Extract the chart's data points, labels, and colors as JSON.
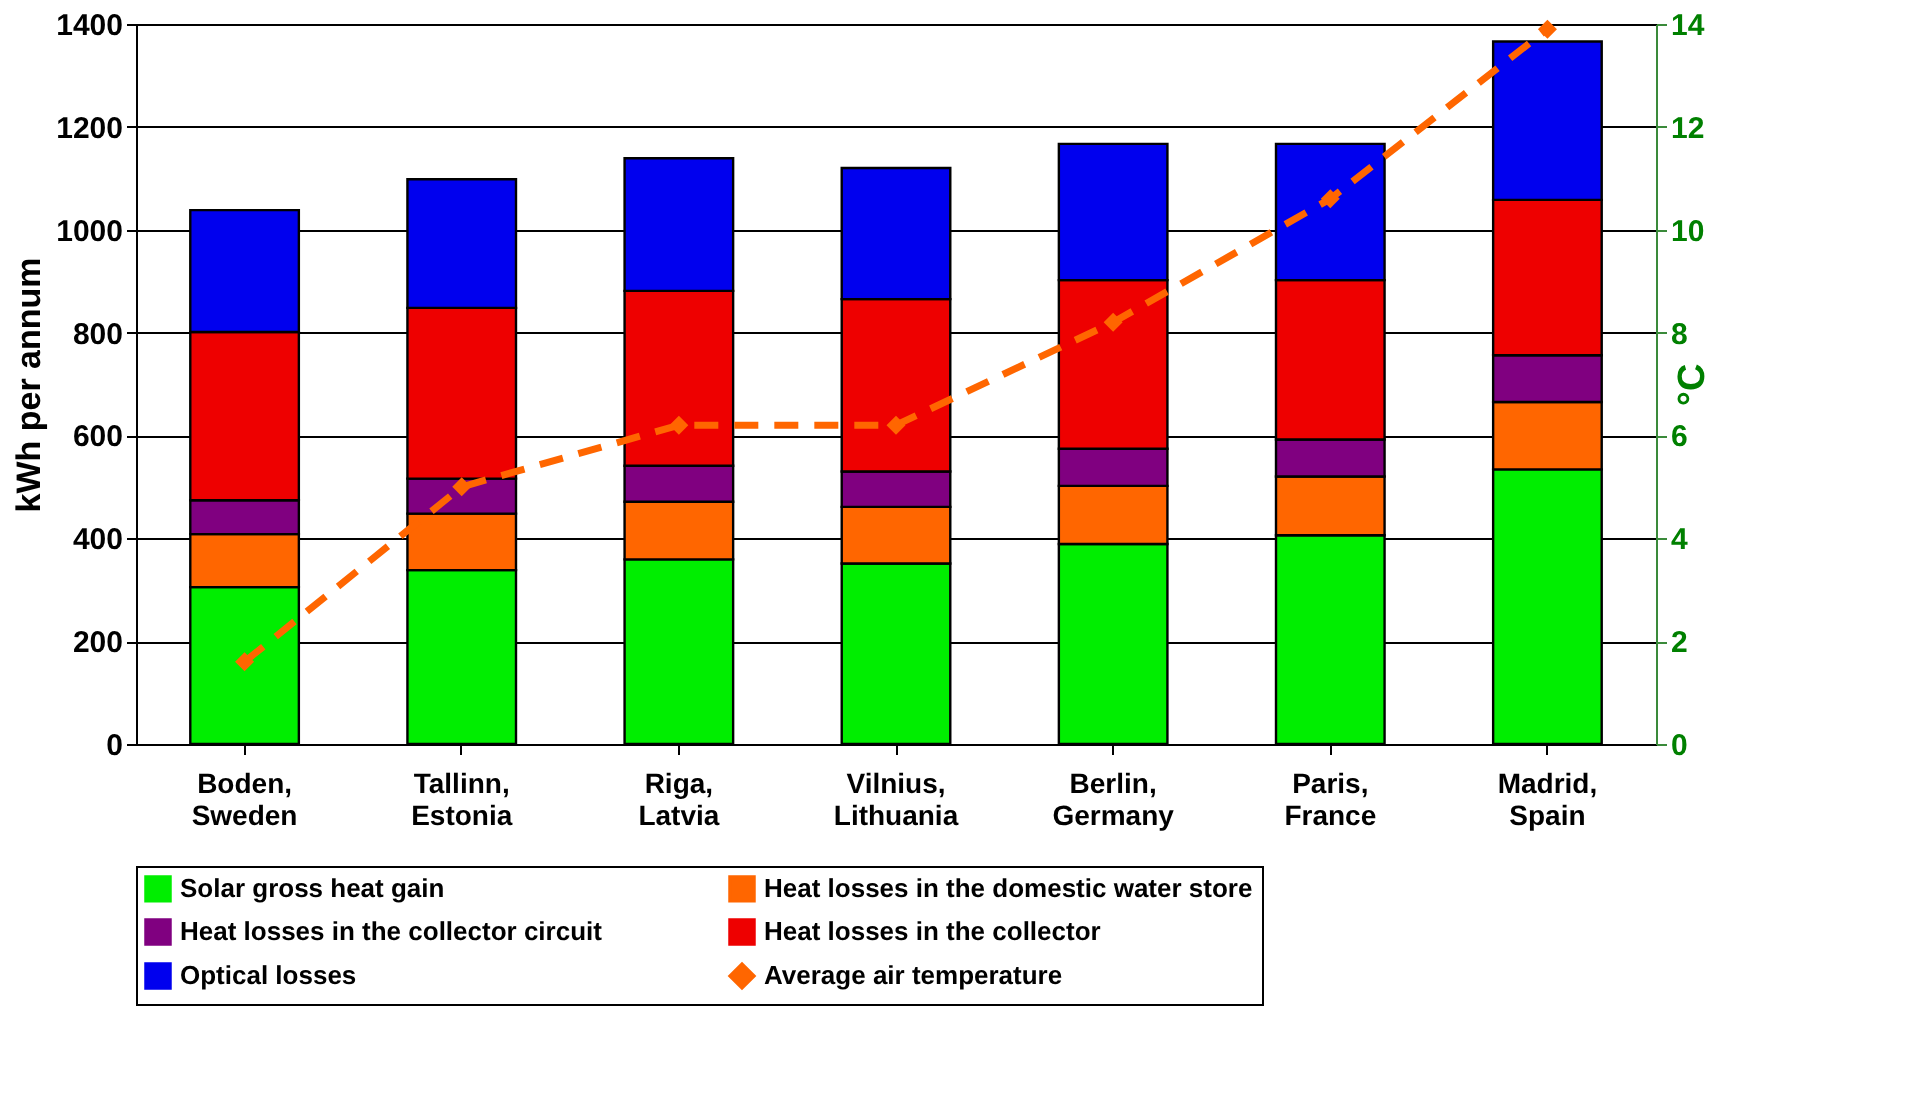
{
  "chart_data": {
    "type": "bar",
    "stacked": true,
    "categories": [
      "Boden,\nSweden",
      "Tallinn,\nEstonia",
      "Riga,\nLatvia",
      "Vilnius,\nLithuania",
      "Berlin,\nGermany",
      "Paris,\nFrance",
      "Madrid,\nSpain"
    ],
    "series": [
      {
        "name": "Solar gross heat gain",
        "color": "#00ee00",
        "values": [
          305,
          338,
          359,
          351,
          389,
          406,
          534
        ]
      },
      {
        "name": "Heat losses in the domestic water store",
        "color": "#ff6600",
        "values": [
          103,
          110,
          112,
          110,
          113,
          114,
          131
        ]
      },
      {
        "name": "Heat losses in the collector circuit",
        "color": "#800080",
        "values": [
          66,
          68,
          70,
          69,
          72,
          72,
          91
        ]
      },
      {
        "name": "Heat losses in the collector",
        "color": "#ee0000",
        "values": [
          327,
          332,
          340,
          335,
          328,
          310,
          302
        ]
      },
      {
        "name": "Optical losses",
        "color": "#0000ee",
        "values": [
          237,
          250,
          258,
          255,
          265,
          265,
          308
        ]
      },
      {
        "name": "Average air temperature",
        "color": "#ff6600",
        "type": "line",
        "axis": "y2",
        "marker": "diamond",
        "line_style": "dashed",
        "values": [
          1.6,
          5.0,
          6.2,
          6.2,
          8.2,
          10.6,
          13.9
        ]
      }
    ],
    "ylabel": "kWh per annum",
    "y2label": "°C",
    "ylim": [
      0,
      1400
    ],
    "yticks": [
      0,
      200,
      400,
      600,
      800,
      1000,
      1200,
      1400
    ],
    "y2lim": [
      0,
      14
    ],
    "y2ticks": [
      0,
      2,
      4,
      6,
      8,
      10,
      12,
      14
    ],
    "grid": "y",
    "legend": "bottom"
  }
}
